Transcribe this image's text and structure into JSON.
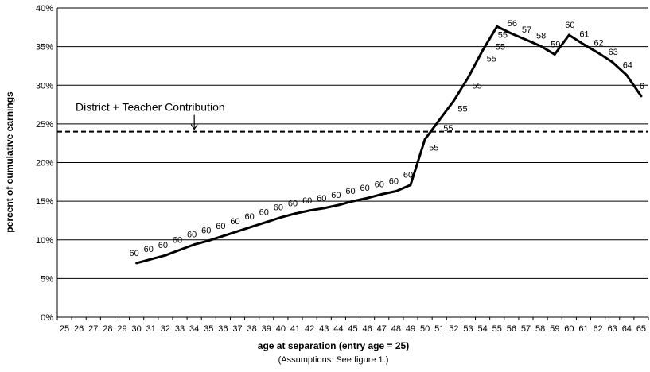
{
  "chart_data": {
    "type": "line",
    "title": "",
    "xlabel": "age at separation (entry age = 25)",
    "ylabel": "percent of cumulative earnings",
    "subtitle_note": "(Assumptions:  See figure 1.)",
    "x_categories": [
      "25",
      "26",
      "27",
      "28",
      "29",
      "30",
      "31",
      "32",
      "33",
      "34",
      "35",
      "36",
      "37",
      "38",
      "39",
      "40",
      "41",
      "42",
      "43",
      "44",
      "45",
      "46",
      "47",
      "48",
      "49",
      "50",
      "51",
      "52",
      "53",
      "54",
      "55",
      "56",
      "57",
      "58",
      "59",
      "60",
      "61",
      "62",
      "63",
      "64",
      "65"
    ],
    "ylim": [
      0,
      40
    ],
    "y_ticks": [
      0,
      5,
      10,
      15,
      20,
      25,
      30,
      35,
      40
    ],
    "y_tick_format": "percent",
    "grid": true,
    "series": [
      {
        "x": [
          30,
          31,
          32,
          33,
          34,
          35,
          36,
          37,
          38,
          39,
          40,
          41,
          42,
          43,
          44,
          45,
          46,
          47,
          48,
          49,
          50,
          51,
          52,
          53,
          54,
          55,
          56,
          57,
          58,
          59,
          60,
          61,
          62,
          63,
          64,
          65
        ],
        "values": [
          7.0,
          7.5,
          8.0,
          8.7,
          9.4,
          9.9,
          10.5,
          11.1,
          11.7,
          12.3,
          12.9,
          13.4,
          13.8,
          14.1,
          14.5,
          15.0,
          15.4,
          15.9,
          16.3,
          17.1,
          23.0,
          25.5,
          28.0,
          31.0,
          34.5,
          37.6,
          36.7,
          35.9,
          35.1,
          34.0,
          36.5,
          35.3,
          34.2,
          33.0,
          31.3,
          28.6
        ],
        "point_labels": [
          "60",
          "60",
          "60",
          "60",
          "60",
          "60",
          "60",
          "60",
          "60",
          "60",
          "60",
          "60",
          "60",
          "60",
          "60",
          "60",
          "60",
          "60",
          "60",
          "60",
          "55",
          "55",
          "55",
          "55",
          "55",
          "55",
          "56",
          "57",
          "58",
          "59",
          "60",
          "61",
          "62",
          "63",
          "64",
          "6"
        ]
      }
    ],
    "reference_line": {
      "value": 24.0,
      "label": "District + Teacher Contribution",
      "style": "dashed",
      "arrow_at_x": 34
    }
  }
}
